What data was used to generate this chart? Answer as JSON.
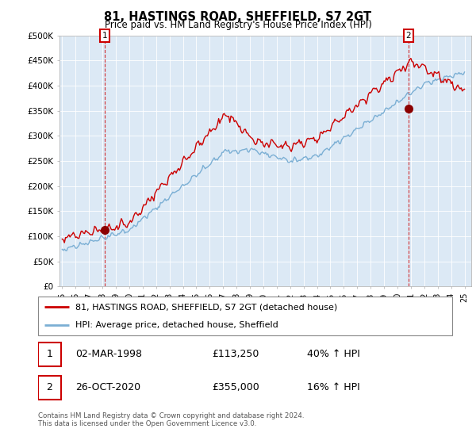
{
  "title": "81, HASTINGS ROAD, SHEFFIELD, S7 2GT",
  "subtitle": "Price paid vs. HM Land Registry's House Price Index (HPI)",
  "legend_line1": "81, HASTINGS ROAD, SHEFFIELD, S7 2GT (detached house)",
  "legend_line2": "HPI: Average price, detached house, Sheffield",
  "annotation1_label": "1",
  "annotation1_date": "02-MAR-1998",
  "annotation1_price": "£113,250",
  "annotation1_hpi": "40% ↑ HPI",
  "annotation2_label": "2",
  "annotation2_date": "26-OCT-2020",
  "annotation2_price": "£355,000",
  "annotation2_hpi": "16% ↑ HPI",
  "footer": "Contains HM Land Registry data © Crown copyright and database right 2024.\nThis data is licensed under the Open Government Licence v3.0.",
  "hpi_color": "#7bafd4",
  "price_color": "#cc0000",
  "chart_bg": "#dce9f5",
  "ylim": [
    0,
    500000
  ],
  "yticks": [
    0,
    50000,
    100000,
    150000,
    200000,
    250000,
    300000,
    350000,
    400000,
    450000,
    500000
  ],
  "ytick_labels": [
    "£0",
    "£50K",
    "£100K",
    "£150K",
    "£200K",
    "£250K",
    "£300K",
    "£350K",
    "£400K",
    "£450K",
    "£500K"
  ],
  "sale1_x": 1998.17,
  "sale1_y": 113250,
  "sale2_x": 2020.82,
  "sale2_y": 355000,
  "xlim_left": 1994.8,
  "xlim_right": 2025.5
}
